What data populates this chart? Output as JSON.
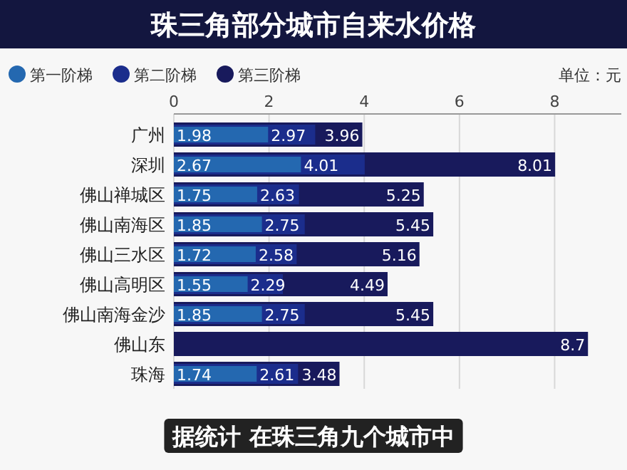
{
  "chart_data": {
    "type": "bar",
    "orientation": "horizontal",
    "title": "珠三角部分城市自来水价格",
    "categories": [
      "广州",
      "深圳",
      "佛山禅城区",
      "佛山南海区",
      "佛山三水区",
      "佛山高明区",
      "佛山南海金沙",
      "佛山东",
      "珠海"
    ],
    "series": [
      {
        "name": "第一阶梯",
        "color": "#2468b0",
        "values": [
          1.98,
          2.67,
          1.75,
          1.85,
          1.72,
          1.55,
          1.85,
          null,
          1.74
        ]
      },
      {
        "name": "第二阶梯",
        "color": "#1b2d8c",
        "values": [
          2.97,
          4.01,
          2.63,
          2.75,
          2.58,
          2.29,
          2.75,
          null,
          2.61
        ]
      },
      {
        "name": "第三阶梯",
        "color": "#181a5c",
        "values": [
          3.96,
          8.01,
          5.25,
          5.45,
          5.16,
          4.49,
          5.45,
          8.7,
          3.48
        ]
      }
    ],
    "xlim": [
      0,
      9.4
    ],
    "xticks": [
      0,
      2,
      4,
      6,
      8
    ],
    "grid": "x",
    "legend": "top left",
    "data_labels": true,
    "annotations": [
      "单位：元",
      "据统计 在珠三角九个城市中"
    ]
  }
}
